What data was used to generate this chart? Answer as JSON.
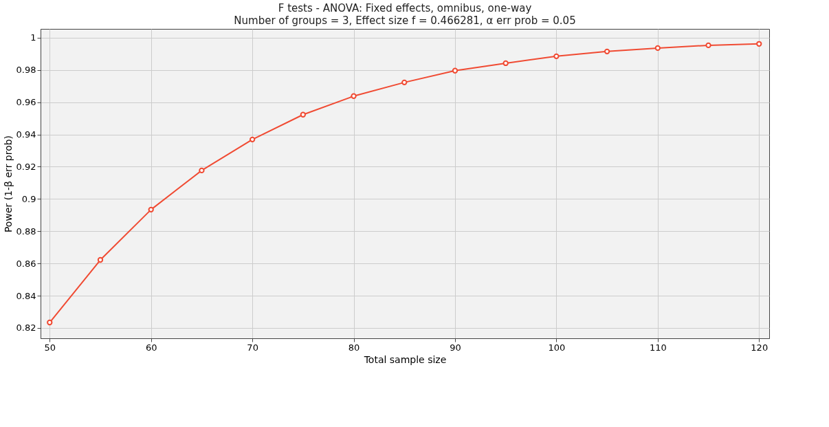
{
  "chart_data": {
    "type": "line",
    "title": "F tests - ANOVA: Fixed effects, omnibus, one-way",
    "subtitle": "Number of groups = 3, Effect size f = 0.466281, α err prob = 0.05",
    "xlabel": "Total sample size",
    "ylabel": "Power (1-β err prob)",
    "x": [
      50,
      55,
      60,
      65,
      70,
      75,
      80,
      85,
      90,
      95,
      100,
      105,
      110,
      115,
      120
    ],
    "series": [
      {
        "color": "#f04a32",
        "values": [
          0.8234,
          0.8622,
          0.8934,
          0.9177,
          0.9369,
          0.9523,
          0.9638,
          0.9723,
          0.9796,
          0.9842,
          0.9885,
          0.9915,
          0.9936,
          0.9953,
          0.9962
        ]
      }
    ],
    "xlim": [
      49.1,
      121
    ],
    "ylim": [
      0.8136,
      1.0055
    ],
    "xticks": [
      50,
      60,
      70,
      80,
      90,
      100,
      110,
      120
    ],
    "yticks": [
      0.82,
      0.84,
      0.86,
      0.88,
      0.9,
      0.92,
      0.94,
      0.96,
      0.98,
      1
    ],
    "grid": true,
    "marker": "circle",
    "line_style": "solid"
  }
}
